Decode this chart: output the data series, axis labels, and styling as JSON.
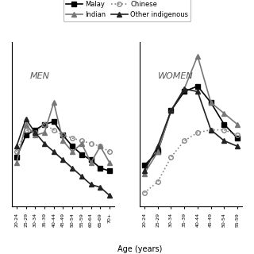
{
  "men_ages": [
    "20-24",
    "25-29",
    "30-34",
    "35-39",
    "40-44",
    "45-49",
    "50-54",
    "55-59",
    "60-64",
    "65-69",
    "70+"
  ],
  "women_ages": [
    "20-24",
    "25-29",
    "30-34",
    "35-39",
    "40-44",
    "45-49",
    "50-54",
    "55-59"
  ],
  "men_malay": [
    18,
    26,
    28,
    30,
    31,
    26,
    22,
    19,
    17,
    14,
    13
  ],
  "men_chinese": [
    20,
    28,
    27,
    30,
    28,
    26,
    25,
    24,
    23,
    22,
    20
  ],
  "men_indian": [
    16,
    30,
    26,
    27,
    38,
    24,
    20,
    23,
    16,
    22,
    16
  ],
  "men_other": [
    22,
    32,
    27,
    23,
    20,
    17,
    14,
    11,
    8,
    7,
    4
  ],
  "women_malay": [
    15,
    20,
    35,
    42,
    44,
    38,
    30,
    25
  ],
  "women_chinese": [
    5,
    9,
    18,
    24,
    27,
    28,
    28,
    26
  ],
  "women_indian": [
    12,
    20,
    35,
    43,
    55,
    38,
    34,
    30
  ],
  "women_other": [
    13,
    22,
    35,
    43,
    42,
    28,
    24,
    22
  ],
  "color_malay": "#000000",
  "color_chinese": "#888888",
  "color_indian": "#555555",
  "color_other": "#222222",
  "xlabel": "Age (years)",
  "title": "",
  "legend_labels": [
    "Malay",
    "Indian",
    "Chinese",
    "Other indigenous"
  ],
  "background": "#ffffff"
}
